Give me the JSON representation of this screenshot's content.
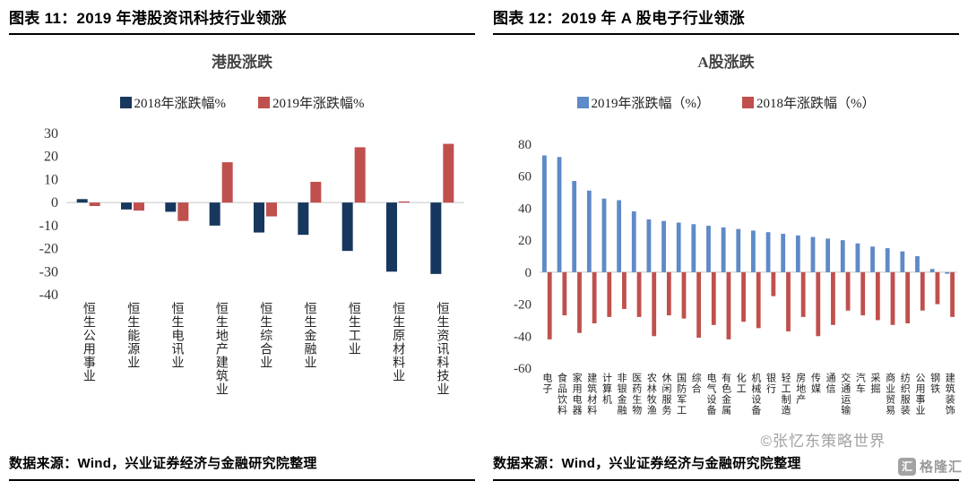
{
  "page": {
    "left_header": "图表 11：2019 年港股资讯科技行业领涨",
    "right_header": "图表 12：2019 年 A 股电子行业领涨",
    "left_source": "数据来源：Wind，兴业证券经济与金融研究院整理",
    "right_source": "数据来源：Wind，兴业证券经济与金融研究院整理",
    "watermark": "©张忆东策略世界",
    "brand": {
      "icon_char": "汇",
      "text": "格隆汇"
    }
  },
  "chart_data": [
    {
      "type": "bar",
      "title": "港股涨跌",
      "categories": [
        "恒生公用事业",
        "恒生能源业",
        "恒生电讯业",
        "恒生地产建筑业",
        "恒生综合业",
        "恒生金融业",
        "恒生工业",
        "恒生原材料业",
        "恒生资讯科技业"
      ],
      "series": [
        {
          "name": "2018年涨跌幅%",
          "color": "#17375E",
          "values": [
            1.5,
            -3,
            -4,
            -10,
            -13,
            -14,
            -21,
            -30,
            -31
          ]
        },
        {
          "name": "2019年涨跌幅%",
          "color": "#C0504D",
          "values": [
            -1.5,
            -3.5,
            -8,
            17.5,
            -6,
            9,
            24,
            0.5,
            25.5
          ]
        }
      ],
      "xlabel": "",
      "ylabel": "",
      "ylim": [
        -40,
        30
      ],
      "yticks": [
        30,
        20,
        10,
        0,
        -10,
        -20,
        -30,
        -40
      ],
      "grid": false,
      "legend_position": "top"
    },
    {
      "type": "bar",
      "title": "A股涨跌",
      "categories": [
        "电子",
        "食品饮料",
        "家用电器",
        "建筑材料",
        "计算机",
        "非银金融",
        "医药生物",
        "农林牧渔",
        "休闲服务",
        "国防军工",
        "综合",
        "电气设备",
        "有色金属",
        "化工",
        "机械设备",
        "银行",
        "轻工制造",
        "房地产",
        "传媒",
        "通信",
        "交通运输",
        "汽车",
        "采掘",
        "商业贸易",
        "纺织服装",
        "公用事业",
        "钢铁",
        "建筑装饰"
      ],
      "series": [
        {
          "name": "2019年涨跌幅（%）",
          "color": "#5E8AC7",
          "values": [
            73,
            72,
            57,
            51,
            46,
            45,
            38,
            33,
            32,
            31,
            30,
            29,
            28,
            27,
            26,
            25,
            24,
            23,
            22,
            21,
            20,
            18,
            16,
            15,
            13,
            10,
            2,
            -1
          ]
        },
        {
          "name": "2018年涨跌幅（%）",
          "color": "#C0504D",
          "values": [
            -42,
            -27,
            -38,
            -32,
            -28,
            -23,
            -28,
            -40,
            -27,
            -29,
            -41,
            -33,
            -42,
            -31,
            -35,
            -15,
            -37,
            -28,
            -40,
            -33,
            -24,
            -27,
            -30,
            -33,
            -32,
            -24,
            -20,
            -28
          ]
        }
      ],
      "xlabel": "",
      "ylabel": "",
      "ylim": [
        -60,
        80
      ],
      "yticks": [
        80,
        60,
        40,
        20,
        0,
        -20,
        -40,
        -60
      ],
      "grid": false,
      "legend_position": "top"
    }
  ]
}
